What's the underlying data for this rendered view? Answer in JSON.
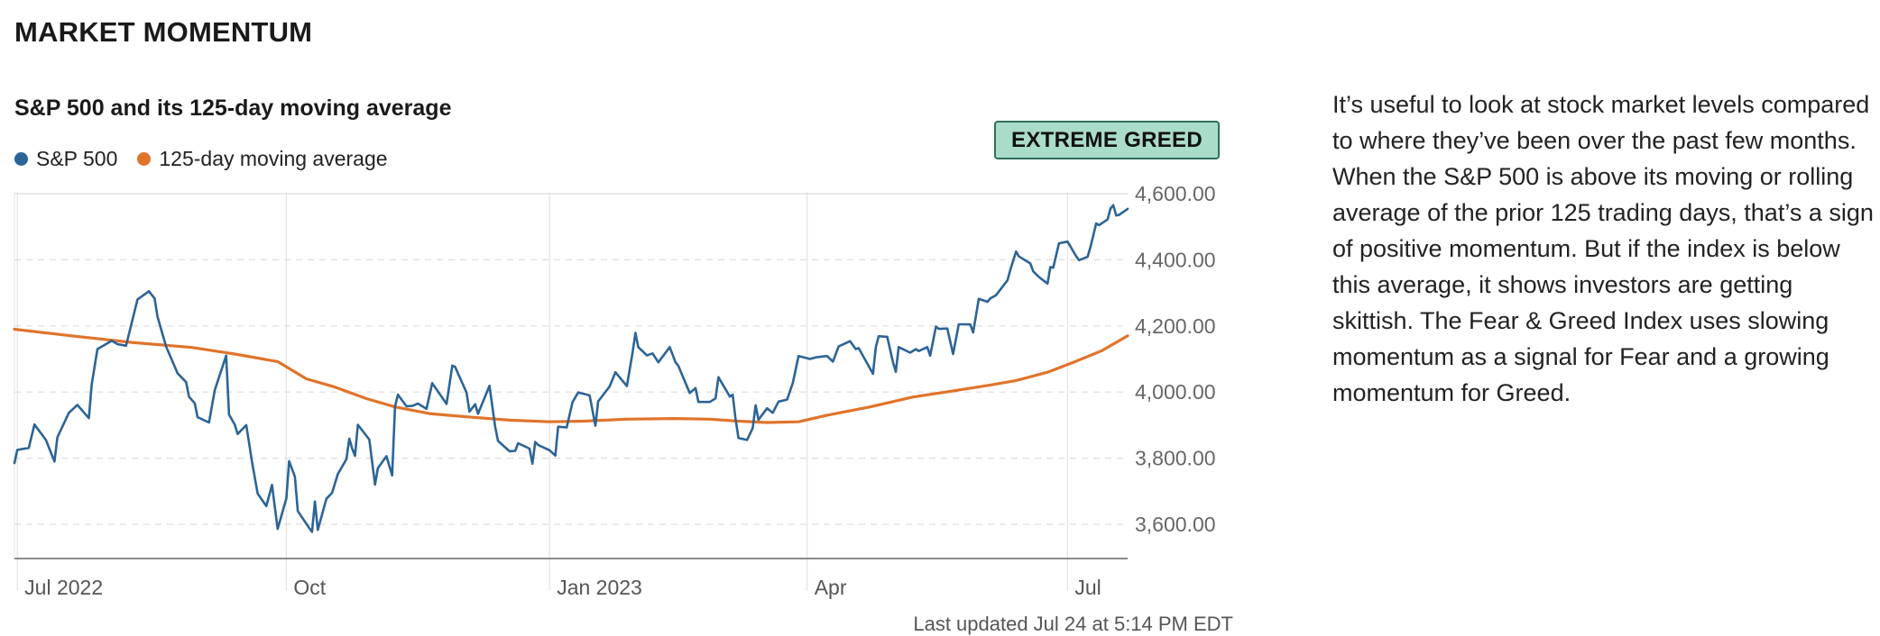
{
  "header": {
    "title": "MARKET MOMENTUM"
  },
  "badge": {
    "label": "EXTREME GREED",
    "bg": "#a9dcc9",
    "border": "#2f6f5b"
  },
  "footer": {
    "updated": "Last updated Jul 24 at 5:14 PM EDT"
  },
  "description": "It’s useful to look at stock market levels compared to where they’ve been over the past few months. When the S&P 500 is above its moving or rolling average of the prior 125 trading days, that’s a sign of positive momentum. But if the index is below this average, it shows investors are getting skittish. The Fear & Greed Index uses slowing momentum as a signal for Fear and a growing momentum for Greed.",
  "chart_data": {
    "type": "line",
    "title": "S&P 500 and its 125-day moving average",
    "xlabel": "",
    "ylabel": "",
    "x_range": [
      "2022-06-30",
      "2023-07-24"
    ],
    "ylim": [
      3500,
      4600
    ],
    "y_ticks": [
      3600,
      3800,
      4000,
      4200,
      4400,
      4600
    ],
    "y_tick_labels": [
      "3,600.00",
      "3,800.00",
      "4,000.00",
      "4,200.00",
      "4,400.00",
      "4,600.00"
    ],
    "x_ticks": [
      {
        "date": "2022-07-01",
        "label": "Jul 2022"
      },
      {
        "date": "2022-10-03",
        "label": "Oct"
      },
      {
        "date": "2023-01-03",
        "label": "Jan 2023"
      },
      {
        "date": "2023-04-03",
        "label": "Apr"
      },
      {
        "date": "2023-07-03",
        "label": "Jul"
      }
    ],
    "grid": true,
    "legend_position": "top-left",
    "series": [
      {
        "name": "S&P 500",
        "color": "#2c6496",
        "points": [
          [
            "2022-06-30",
            3785
          ],
          [
            "2022-07-01",
            3825
          ],
          [
            "2022-07-05",
            3831
          ],
          [
            "2022-07-07",
            3902
          ],
          [
            "2022-07-11",
            3855
          ],
          [
            "2022-07-14",
            3790
          ],
          [
            "2022-07-15",
            3863
          ],
          [
            "2022-07-19",
            3937
          ],
          [
            "2022-07-22",
            3961
          ],
          [
            "2022-07-26",
            3921
          ],
          [
            "2022-07-27",
            4024
          ],
          [
            "2022-07-29",
            4130
          ],
          [
            "2022-08-03",
            4155
          ],
          [
            "2022-08-05",
            4145
          ],
          [
            "2022-08-08",
            4140
          ],
          [
            "2022-08-10",
            4210
          ],
          [
            "2022-08-12",
            4280
          ],
          [
            "2022-08-16",
            4305
          ],
          [
            "2022-08-18",
            4283
          ],
          [
            "2022-08-19",
            4228
          ],
          [
            "2022-08-22",
            4138
          ],
          [
            "2022-08-26",
            4057
          ],
          [
            "2022-08-29",
            4030
          ],
          [
            "2022-08-30",
            3986
          ],
          [
            "2022-09-01",
            3966
          ],
          [
            "2022-09-02",
            3924
          ],
          [
            "2022-09-06",
            3908
          ],
          [
            "2022-09-08",
            4006
          ],
          [
            "2022-09-12",
            4110
          ],
          [
            "2022-09-13",
            3932
          ],
          [
            "2022-09-15",
            3901
          ],
          [
            "2022-09-16",
            3873
          ],
          [
            "2022-09-19",
            3900
          ],
          [
            "2022-09-21",
            3790
          ],
          [
            "2022-09-23",
            3693
          ],
          [
            "2022-09-26",
            3655
          ],
          [
            "2022-09-28",
            3719
          ],
          [
            "2022-09-30",
            3586
          ],
          [
            "2022-10-03",
            3678
          ],
          [
            "2022-10-04",
            3791
          ],
          [
            "2022-10-06",
            3744
          ],
          [
            "2022-10-07",
            3640
          ],
          [
            "2022-10-11",
            3589
          ],
          [
            "2022-10-12",
            3577
          ],
          [
            "2022-10-13",
            3669
          ],
          [
            "2022-10-14",
            3583
          ],
          [
            "2022-10-17",
            3677
          ],
          [
            "2022-10-19",
            3695
          ],
          [
            "2022-10-21",
            3752
          ],
          [
            "2022-10-24",
            3797
          ],
          [
            "2022-10-25",
            3859
          ],
          [
            "2022-10-26",
            3830
          ],
          [
            "2022-10-27",
            3807
          ],
          [
            "2022-10-28",
            3901
          ],
          [
            "2022-11-01",
            3856
          ],
          [
            "2022-11-03",
            3720
          ],
          [
            "2022-11-04",
            3770
          ],
          [
            "2022-11-07",
            3806
          ],
          [
            "2022-11-09",
            3748
          ],
          [
            "2022-11-10",
            3956
          ],
          [
            "2022-11-11",
            3992
          ],
          [
            "2022-11-14",
            3957
          ],
          [
            "2022-11-16",
            3958
          ],
          [
            "2022-11-18",
            3965
          ],
          [
            "2022-11-21",
            3949
          ],
          [
            "2022-11-23",
            4027
          ],
          [
            "2022-11-28",
            3964
          ],
          [
            "2022-11-30",
            4080
          ],
          [
            "2022-12-01",
            4076
          ],
          [
            "2022-12-05",
            3998
          ],
          [
            "2022-12-06",
            3941
          ],
          [
            "2022-12-08",
            3963
          ],
          [
            "2022-12-09",
            3934
          ],
          [
            "2022-12-13",
            4019
          ],
          [
            "2022-12-15",
            3895
          ],
          [
            "2022-12-16",
            3852
          ],
          [
            "2022-12-20",
            3821
          ],
          [
            "2022-12-22",
            3822
          ],
          [
            "2022-12-23",
            3845
          ],
          [
            "2022-12-27",
            3829
          ],
          [
            "2022-12-28",
            3783
          ],
          [
            "2022-12-29",
            3849
          ],
          [
            "2022-12-30",
            3840
          ],
          [
            "2023-01-03",
            3824
          ],
          [
            "2023-01-05",
            3808
          ],
          [
            "2023-01-06",
            3895
          ],
          [
            "2023-01-09",
            3893
          ],
          [
            "2023-01-11",
            3969
          ],
          [
            "2023-01-13",
            3999
          ],
          [
            "2023-01-17",
            3990
          ],
          [
            "2023-01-19",
            3898
          ],
          [
            "2023-01-20",
            3972
          ],
          [
            "2023-01-24",
            4017
          ],
          [
            "2023-01-26",
            4060
          ],
          [
            "2023-01-30",
            4018
          ],
          [
            "2023-02-01",
            4119
          ],
          [
            "2023-02-02",
            4179
          ],
          [
            "2023-02-03",
            4136
          ],
          [
            "2023-02-06",
            4111
          ],
          [
            "2023-02-08",
            4117
          ],
          [
            "2023-02-10",
            4090
          ],
          [
            "2023-02-14",
            4136
          ],
          [
            "2023-02-16",
            4090
          ],
          [
            "2023-02-17",
            4079
          ],
          [
            "2023-02-21",
            3997
          ],
          [
            "2023-02-23",
            4012
          ],
          [
            "2023-02-24",
            3970
          ],
          [
            "2023-02-28",
            3970
          ],
          [
            "2023-03-02",
            3981
          ],
          [
            "2023-03-03",
            4045
          ],
          [
            "2023-03-07",
            3986
          ],
          [
            "2023-03-08",
            3992
          ],
          [
            "2023-03-09",
            3918
          ],
          [
            "2023-03-10",
            3861
          ],
          [
            "2023-03-13",
            3855
          ],
          [
            "2023-03-15",
            3891
          ],
          [
            "2023-03-16",
            3960
          ],
          [
            "2023-03-17",
            3916
          ],
          [
            "2023-03-20",
            3951
          ],
          [
            "2023-03-22",
            3937
          ],
          [
            "2023-03-24",
            3971
          ],
          [
            "2023-03-27",
            3977
          ],
          [
            "2023-03-29",
            4027
          ],
          [
            "2023-03-31",
            4109
          ],
          [
            "2023-04-04",
            4100
          ],
          [
            "2023-04-06",
            4105
          ],
          [
            "2023-04-10",
            4109
          ],
          [
            "2023-04-12",
            4092
          ],
          [
            "2023-04-14",
            4138
          ],
          [
            "2023-04-18",
            4154
          ],
          [
            "2023-04-20",
            4130
          ],
          [
            "2023-04-21",
            4133
          ],
          [
            "2023-04-25",
            4071
          ],
          [
            "2023-04-26",
            4055
          ],
          [
            "2023-04-27",
            4135
          ],
          [
            "2023-04-28",
            4169
          ],
          [
            "2023-05-01",
            4167
          ],
          [
            "2023-05-03",
            4090
          ],
          [
            "2023-05-04",
            4061
          ],
          [
            "2023-05-05",
            4136
          ],
          [
            "2023-05-09",
            4119
          ],
          [
            "2023-05-11",
            4130
          ],
          [
            "2023-05-12",
            4124
          ],
          [
            "2023-05-15",
            4136
          ],
          [
            "2023-05-16",
            4110
          ],
          [
            "2023-05-18",
            4198
          ],
          [
            "2023-05-19",
            4191
          ],
          [
            "2023-05-22",
            4192
          ],
          [
            "2023-05-24",
            4115
          ],
          [
            "2023-05-26",
            4205
          ],
          [
            "2023-05-30",
            4205
          ],
          [
            "2023-05-31",
            4180
          ],
          [
            "2023-06-02",
            4282
          ],
          [
            "2023-06-05",
            4273
          ],
          [
            "2023-06-06",
            4283
          ],
          [
            "2023-06-08",
            4293
          ],
          [
            "2023-06-12",
            4338
          ],
          [
            "2023-06-13",
            4369
          ],
          [
            "2023-06-15",
            4425
          ],
          [
            "2023-06-16",
            4410
          ],
          [
            "2023-06-20",
            4389
          ],
          [
            "2023-06-21",
            4365
          ],
          [
            "2023-06-23",
            4348
          ],
          [
            "2023-06-26",
            4328
          ],
          [
            "2023-06-27",
            4378
          ],
          [
            "2023-06-28",
            4376
          ],
          [
            "2023-06-30",
            4450
          ],
          [
            "2023-07-03",
            4455
          ],
          [
            "2023-07-06",
            4411
          ],
          [
            "2023-07-07",
            4399
          ],
          [
            "2023-07-10",
            4409
          ],
          [
            "2023-07-11",
            4439
          ],
          [
            "2023-07-12",
            4473
          ],
          [
            "2023-07-13",
            4510
          ],
          [
            "2023-07-14",
            4505
          ],
          [
            "2023-07-17",
            4522
          ],
          [
            "2023-07-18",
            4555
          ],
          [
            "2023-07-19",
            4565
          ],
          [
            "2023-07-20",
            4534
          ],
          [
            "2023-07-21",
            4536
          ],
          [
            "2023-07-24",
            4554
          ]
        ]
      },
      {
        "name": "125-day moving average",
        "color": "#e0742b",
        "points": [
          [
            "2022-06-30",
            4190
          ],
          [
            "2022-07-20",
            4170
          ],
          [
            "2022-08-10",
            4150
          ],
          [
            "2022-08-31",
            4135
          ],
          [
            "2022-09-15",
            4115
          ],
          [
            "2022-09-30",
            4092
          ],
          [
            "2022-10-10",
            4040
          ],
          [
            "2022-10-20",
            4015
          ],
          [
            "2022-10-31",
            3980
          ],
          [
            "2022-11-10",
            3955
          ],
          [
            "2022-11-22",
            3935
          ],
          [
            "2022-12-05",
            3925
          ],
          [
            "2022-12-20",
            3915
          ],
          [
            "2023-01-03",
            3910
          ],
          [
            "2023-01-15",
            3912
          ],
          [
            "2023-01-30",
            3918
          ],
          [
            "2023-02-15",
            3920
          ],
          [
            "2023-02-28",
            3918
          ],
          [
            "2023-03-10",
            3912
          ],
          [
            "2023-03-20",
            3908
          ],
          [
            "2023-03-31",
            3910
          ],
          [
            "2023-04-10",
            3930
          ],
          [
            "2023-04-25",
            3955
          ],
          [
            "2023-05-10",
            3985
          ],
          [
            "2023-05-25",
            4005
          ],
          [
            "2023-06-05",
            4020
          ],
          [
            "2023-06-15",
            4035
          ],
          [
            "2023-06-26",
            4060
          ],
          [
            "2023-07-05",
            4090
          ],
          [
            "2023-07-15",
            4125
          ],
          [
            "2023-07-24",
            4170
          ]
        ]
      }
    ]
  }
}
